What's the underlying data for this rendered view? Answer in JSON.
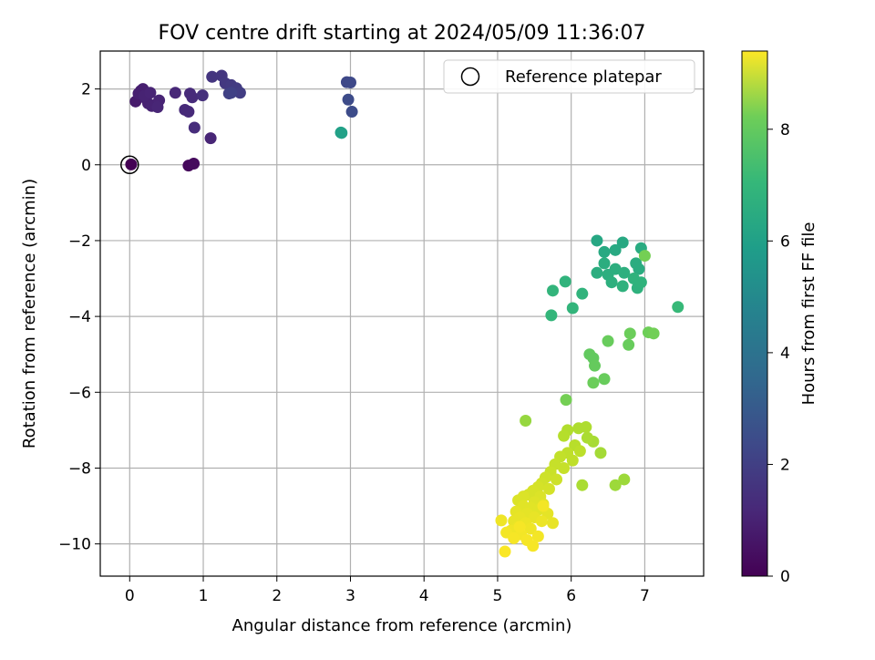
{
  "chart_data": {
    "type": "scatter",
    "title": "FOV centre drift starting at 2024/05/09 11:36:07",
    "xlabel": "Angular distance from reference (arcmin)",
    "ylabel": "Rotation from reference (arcmin)",
    "xlim": [
      -0.4,
      7.8
    ],
    "ylim": [
      -10.85,
      3.0
    ],
    "xticks": [
      0,
      1,
      2,
      3,
      4,
      5,
      6,
      7
    ],
    "yticks": [
      2,
      0,
      -2,
      -4,
      -6,
      -8,
      -10
    ],
    "grid": true,
    "legend": {
      "placement": "top-right",
      "entries": [
        "Reference platepar"
      ]
    },
    "colorbar": {
      "label": "Hours from first FF file",
      "min": 0,
      "max": 9.4,
      "ticks": [
        0,
        2,
        4,
        6,
        8
      ],
      "colormap": "viridis"
    },
    "reference_point": {
      "x": 0,
      "y": 0
    },
    "points": [
      {
        "x": 0.02,
        "y": 0.01,
        "t": 0.0
      },
      {
        "x": 0.8,
        "y": -0.02,
        "t": 0.2
      },
      {
        "x": 0.87,
        "y": 0.03,
        "t": 0.25
      },
      {
        "x": 0.08,
        "y": 1.67,
        "t": 0.7
      },
      {
        "x": 0.15,
        "y": 1.95,
        "t": 0.75
      },
      {
        "x": 0.18,
        "y": 2.0,
        "t": 0.8
      },
      {
        "x": 0.12,
        "y": 1.88,
        "t": 0.8
      },
      {
        "x": 0.22,
        "y": 1.75,
        "t": 0.85
      },
      {
        "x": 0.25,
        "y": 1.62,
        "t": 0.85
      },
      {
        "x": 0.3,
        "y": 1.55,
        "t": 0.9
      },
      {
        "x": 0.35,
        "y": 1.58,
        "t": 0.9
      },
      {
        "x": 0.2,
        "y": 1.82,
        "t": 0.9
      },
      {
        "x": 0.28,
        "y": 1.9,
        "t": 0.95
      },
      {
        "x": 0.4,
        "y": 1.7,
        "t": 0.95
      },
      {
        "x": 0.38,
        "y": 1.52,
        "t": 1.0
      },
      {
        "x": 0.62,
        "y": 1.9,
        "t": 1.05
      },
      {
        "x": 0.75,
        "y": 1.45,
        "t": 1.1
      },
      {
        "x": 0.8,
        "y": 1.4,
        "t": 1.1
      },
      {
        "x": 0.82,
        "y": 1.88,
        "t": 1.15
      },
      {
        "x": 0.85,
        "y": 1.78,
        "t": 1.15
      },
      {
        "x": 0.88,
        "y": 0.98,
        "t": 1.2
      },
      {
        "x": 1.1,
        "y": 0.7,
        "t": 1.0
      },
      {
        "x": 0.99,
        "y": 1.83,
        "t": 1.3
      },
      {
        "x": 1.12,
        "y": 2.32,
        "t": 1.45
      },
      {
        "x": 1.25,
        "y": 2.35,
        "t": 1.5
      },
      {
        "x": 1.3,
        "y": 2.15,
        "t": 1.55
      },
      {
        "x": 1.38,
        "y": 2.1,
        "t": 1.6
      },
      {
        "x": 1.45,
        "y": 2.02,
        "t": 1.65
      },
      {
        "x": 1.5,
        "y": 1.9,
        "t": 1.7
      },
      {
        "x": 1.35,
        "y": 1.88,
        "t": 1.8
      },
      {
        "x": 1.38,
        "y": 1.9,
        "t": 1.85
      },
      {
        "x": 2.95,
        "y": 2.18,
        "t": 2.05
      },
      {
        "x": 3.0,
        "y": 2.17,
        "t": 2.1
      },
      {
        "x": 2.97,
        "y": 1.72,
        "t": 2.15
      },
      {
        "x": 3.02,
        "y": 1.4,
        "t": 2.2
      },
      {
        "x": 2.87,
        "y": 0.85,
        "t": 5.3
      },
      {
        "x": 2.88,
        "y": 0.84,
        "t": 5.35
      },
      {
        "x": 6.35,
        "y": -2.0,
        "t": 5.6
      },
      {
        "x": 6.7,
        "y": -2.05,
        "t": 5.65
      },
      {
        "x": 6.45,
        "y": -2.3,
        "t": 5.7
      },
      {
        "x": 6.6,
        "y": -2.25,
        "t": 5.7
      },
      {
        "x": 6.95,
        "y": -2.2,
        "t": 5.75
      },
      {
        "x": 6.88,
        "y": -2.6,
        "t": 5.8
      },
      {
        "x": 6.92,
        "y": -2.75,
        "t": 5.8
      },
      {
        "x": 6.45,
        "y": -2.6,
        "t": 5.85
      },
      {
        "x": 6.35,
        "y": -2.85,
        "t": 5.85
      },
      {
        "x": 6.5,
        "y": -2.9,
        "t": 5.9
      },
      {
        "x": 6.6,
        "y": -2.75,
        "t": 5.9
      },
      {
        "x": 6.72,
        "y": -2.85,
        "t": 5.95
      },
      {
        "x": 6.55,
        "y": -3.1,
        "t": 5.95
      },
      {
        "x": 6.7,
        "y": -3.2,
        "t": 6.0
      },
      {
        "x": 6.9,
        "y": -3.25,
        "t": 6.0
      },
      {
        "x": 6.95,
        "y": -3.1,
        "t": 6.05
      },
      {
        "x": 6.85,
        "y": -3.0,
        "t": 6.05
      },
      {
        "x": 5.92,
        "y": -3.08,
        "t": 6.1
      },
      {
        "x": 6.15,
        "y": -3.4,
        "t": 6.1
      },
      {
        "x": 5.75,
        "y": -3.32,
        "t": 6.15
      },
      {
        "x": 6.02,
        "y": -3.78,
        "t": 6.15
      },
      {
        "x": 5.73,
        "y": -3.97,
        "t": 6.2
      },
      {
        "x": 7.45,
        "y": -3.75,
        "t": 6.3
      },
      {
        "x": 7.0,
        "y": -2.4,
        "t": 7.4
      },
      {
        "x": 7.05,
        "y": -4.42,
        "t": 7.3
      },
      {
        "x": 7.12,
        "y": -4.45,
        "t": 7.35
      },
      {
        "x": 6.8,
        "y": -4.45,
        "t": 7.25
      },
      {
        "x": 6.78,
        "y": -4.75,
        "t": 7.2
      },
      {
        "x": 6.5,
        "y": -4.65,
        "t": 7.2
      },
      {
        "x": 6.25,
        "y": -5.0,
        "t": 7.1
      },
      {
        "x": 6.3,
        "y": -5.1,
        "t": 7.1
      },
      {
        "x": 6.32,
        "y": -5.3,
        "t": 7.15
      },
      {
        "x": 6.45,
        "y": -5.65,
        "t": 7.2
      },
      {
        "x": 6.3,
        "y": -5.75,
        "t": 7.25
      },
      {
        "x": 5.93,
        "y": -6.2,
        "t": 7.4
      },
      {
        "x": 5.38,
        "y": -6.75,
        "t": 7.9
      },
      {
        "x": 6.6,
        "y": -8.45,
        "t": 8.0
      },
      {
        "x": 6.72,
        "y": -8.3,
        "t": 8.0
      },
      {
        "x": 6.15,
        "y": -8.45,
        "t": 8.2
      },
      {
        "x": 6.4,
        "y": -7.6,
        "t": 8.1
      },
      {
        "x": 6.3,
        "y": -7.3,
        "t": 8.15
      },
      {
        "x": 6.22,
        "y": -7.2,
        "t": 8.2
      },
      {
        "x": 6.1,
        "y": -6.95,
        "t": 8.25
      },
      {
        "x": 6.2,
        "y": -6.92,
        "t": 8.25
      },
      {
        "x": 5.95,
        "y": -7.0,
        "t": 8.3
      },
      {
        "x": 5.9,
        "y": -7.15,
        "t": 8.35
      },
      {
        "x": 6.05,
        "y": -7.4,
        "t": 8.4
      },
      {
        "x": 6.12,
        "y": -7.55,
        "t": 8.45
      },
      {
        "x": 5.95,
        "y": -7.6,
        "t": 8.5
      },
      {
        "x": 6.02,
        "y": -7.8,
        "t": 8.5
      },
      {
        "x": 5.85,
        "y": -7.7,
        "t": 8.55
      },
      {
        "x": 5.78,
        "y": -7.9,
        "t": 8.6
      },
      {
        "x": 5.9,
        "y": -8.0,
        "t": 8.6
      },
      {
        "x": 5.72,
        "y": -8.1,
        "t": 8.65
      },
      {
        "x": 5.65,
        "y": -8.25,
        "t": 8.7
      },
      {
        "x": 5.8,
        "y": -8.3,
        "t": 8.7
      },
      {
        "x": 5.6,
        "y": -8.4,
        "t": 8.75
      },
      {
        "x": 5.55,
        "y": -8.5,
        "t": 8.8
      },
      {
        "x": 5.7,
        "y": -8.55,
        "t": 8.8
      },
      {
        "x": 5.48,
        "y": -8.6,
        "t": 8.85
      },
      {
        "x": 5.42,
        "y": -8.7,
        "t": 8.85
      },
      {
        "x": 5.35,
        "y": -8.75,
        "t": 8.9
      },
      {
        "x": 5.58,
        "y": -8.75,
        "t": 8.9
      },
      {
        "x": 5.28,
        "y": -8.85,
        "t": 8.9
      },
      {
        "x": 5.5,
        "y": -8.9,
        "t": 8.95
      },
      {
        "x": 5.62,
        "y": -8.95,
        "t": 8.95
      },
      {
        "x": 5.35,
        "y": -9.0,
        "t": 9.0
      },
      {
        "x": 5.45,
        "y": -9.05,
        "t": 9.0
      },
      {
        "x": 5.55,
        "y": -9.1,
        "t": 9.0
      },
      {
        "x": 5.25,
        "y": -9.15,
        "t": 9.05
      },
      {
        "x": 5.4,
        "y": -9.2,
        "t": 9.05
      },
      {
        "x": 5.68,
        "y": -9.2,
        "t": 9.05
      },
      {
        "x": 5.3,
        "y": -9.3,
        "t": 9.1
      },
      {
        "x": 5.5,
        "y": -9.3,
        "t": 9.1
      },
      {
        "x": 5.22,
        "y": -9.4,
        "t": 9.1
      },
      {
        "x": 5.38,
        "y": -9.45,
        "t": 9.15
      },
      {
        "x": 5.6,
        "y": -9.4,
        "t": 9.15
      },
      {
        "x": 5.75,
        "y": -9.45,
        "t": 9.1
      },
      {
        "x": 5.28,
        "y": -9.55,
        "t": 9.15
      },
      {
        "x": 5.45,
        "y": -9.6,
        "t": 9.2
      },
      {
        "x": 5.18,
        "y": -9.65,
        "t": 9.2
      },
      {
        "x": 5.05,
        "y": -9.38,
        "t": 9.2
      },
      {
        "x": 5.12,
        "y": -9.7,
        "t": 9.25
      },
      {
        "x": 5.32,
        "y": -9.75,
        "t": 9.25
      },
      {
        "x": 5.55,
        "y": -9.8,
        "t": 9.25
      },
      {
        "x": 5.22,
        "y": -9.85,
        "t": 9.3
      },
      {
        "x": 5.4,
        "y": -9.9,
        "t": 9.3
      },
      {
        "x": 5.48,
        "y": -10.05,
        "t": 9.3
      },
      {
        "x": 5.1,
        "y": -10.2,
        "t": 9.35
      },
      {
        "x": 5.3,
        "y": -9.55,
        "t": 9.3
      },
      {
        "x": 5.62,
        "y": -9.0,
        "t": 9.25
      }
    ]
  }
}
